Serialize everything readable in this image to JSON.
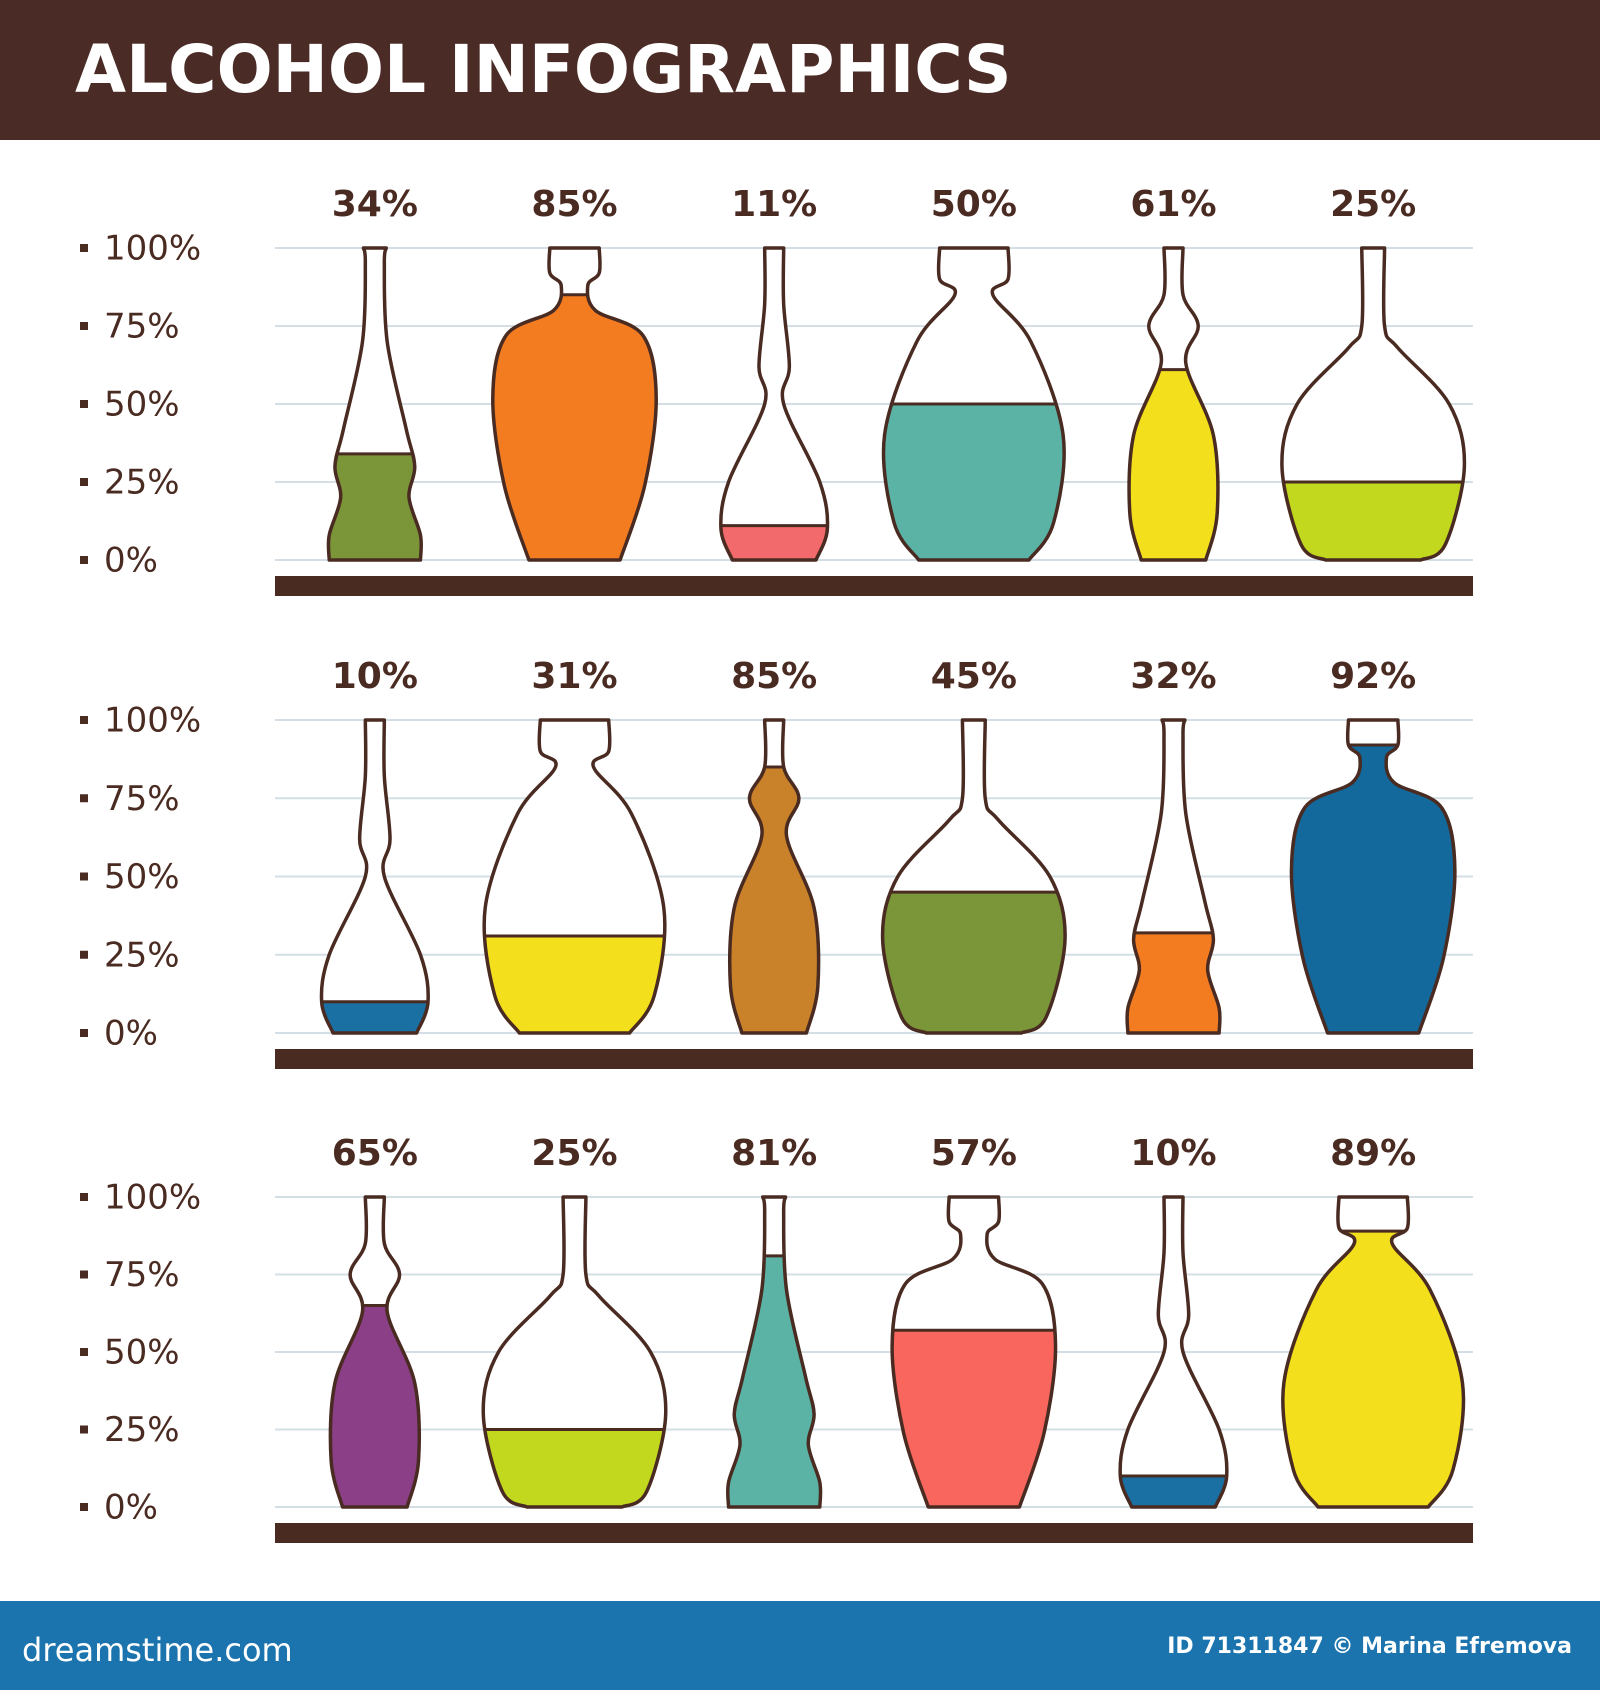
{
  "title": "ALCOHOL INFOGRAPHICS",
  "chart_data": [
    {
      "type": "bottle",
      "values": [
        34,
        85,
        11,
        50,
        61,
        25
      ],
      "value_labels": [
        "34%",
        "85%",
        "11%",
        "50%",
        "61%",
        "25%"
      ],
      "colors": [
        "#7b9638",
        "#f47c20",
        "#f26a6b",
        "#5bb3a6",
        "#f3df1c",
        "#c2d81e"
      ],
      "ylim": [
        0,
        100
      ],
      "yticks": [
        {
          "value": 0,
          "label": "0%"
        },
        {
          "value": 25,
          "label": "25%"
        },
        {
          "value": 50,
          "label": "50%"
        },
        {
          "value": 75,
          "label": "75%"
        },
        {
          "value": 100,
          "label": "100%"
        }
      ],
      "grid": true
    },
    {
      "type": "bottle",
      "values": [
        10,
        31,
        85,
        45,
        32,
        92
      ],
      "value_labels": [
        "10%",
        "31%",
        "85%",
        "45%",
        "32%",
        "92%"
      ],
      "colors": [
        "#1a6fa3",
        "#f3df1c",
        "#c9822a",
        "#7b9638",
        "#f47c20",
        "#13699c"
      ],
      "ylim": [
        0,
        100
      ],
      "yticks": [
        {
          "value": 0,
          "label": "0%"
        },
        {
          "value": 25,
          "label": "25%"
        },
        {
          "value": 50,
          "label": "50%"
        },
        {
          "value": 75,
          "label": "75%"
        },
        {
          "value": 100,
          "label": "100%"
        }
      ],
      "grid": true
    },
    {
      "type": "bottle",
      "values": [
        65,
        25,
        81,
        57,
        10,
        89
      ],
      "value_labels": [
        "65%",
        "25%",
        "81%",
        "57%",
        "10%",
        "89%"
      ],
      "colors": [
        "#8a3f87",
        "#c2d81e",
        "#5bb3a6",
        "#f9665e",
        "#1a6fa3",
        "#f3df1c"
      ],
      "ylim": [
        0,
        100
      ],
      "yticks": [
        {
          "value": 0,
          "label": "0%"
        },
        {
          "value": 25,
          "label": "25%"
        },
        {
          "value": 50,
          "label": "50%"
        },
        {
          "value": 75,
          "label": "75%"
        },
        {
          "value": 100,
          "label": "100%"
        }
      ],
      "grid": true
    }
  ],
  "footer": {
    "site": "dreamstime.com",
    "credit": "ID 71311847 © Marina Efremova"
  }
}
